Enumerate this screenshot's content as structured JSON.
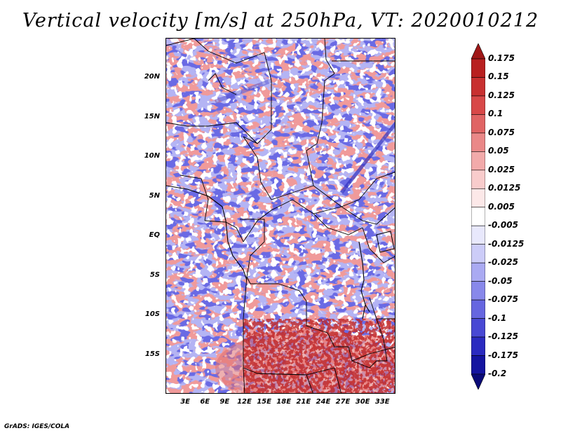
{
  "title": "Vertical velocity [m/s] at 250hPa, VT: 2020010212",
  "credit": "GrADS: IGES/COLA",
  "map": {
    "lat_labels": [
      "20N",
      "15N",
      "10N",
      "5N",
      "EQ",
      "5S",
      "10S",
      "15S"
    ],
    "lat_values": [
      20,
      15,
      10,
      5,
      0,
      -5,
      -10,
      -15
    ],
    "lon_labels": [
      "3E",
      "6E",
      "9E",
      "12E",
      "15E",
      "18E",
      "21E",
      "24E",
      "27E",
      "30E",
      "33E"
    ],
    "lon_values": [
      3,
      6,
      9,
      12,
      15,
      18,
      21,
      24,
      27,
      30,
      33
    ],
    "lon_range": [
      0,
      35
    ],
    "lat_range": [
      -20,
      25
    ]
  },
  "colorbar": {
    "labels": [
      "0.175",
      "0.15",
      "0.125",
      "0.1",
      "0.075",
      "0.05",
      "0.025",
      "0.0125",
      "0.005",
      "-0.005",
      "-0.0125",
      "-0.025",
      "-0.05",
      "-0.075",
      "-0.1",
      "-0.125",
      "-0.175",
      "-0.2"
    ],
    "colors": [
      "#a01818",
      "#b82020",
      "#c83030",
      "#d84848",
      "#e06464",
      "#ea8888",
      "#f2aaaa",
      "#f8cccc",
      "#fce8e8",
      "#ffffff",
      "#e8e8fc",
      "#ccccf8",
      "#aaaaf2",
      "#8888ea",
      "#6666e0",
      "#4848d4",
      "#2a2ac0",
      "#1414a0",
      "#0a0a78"
    ]
  }
}
